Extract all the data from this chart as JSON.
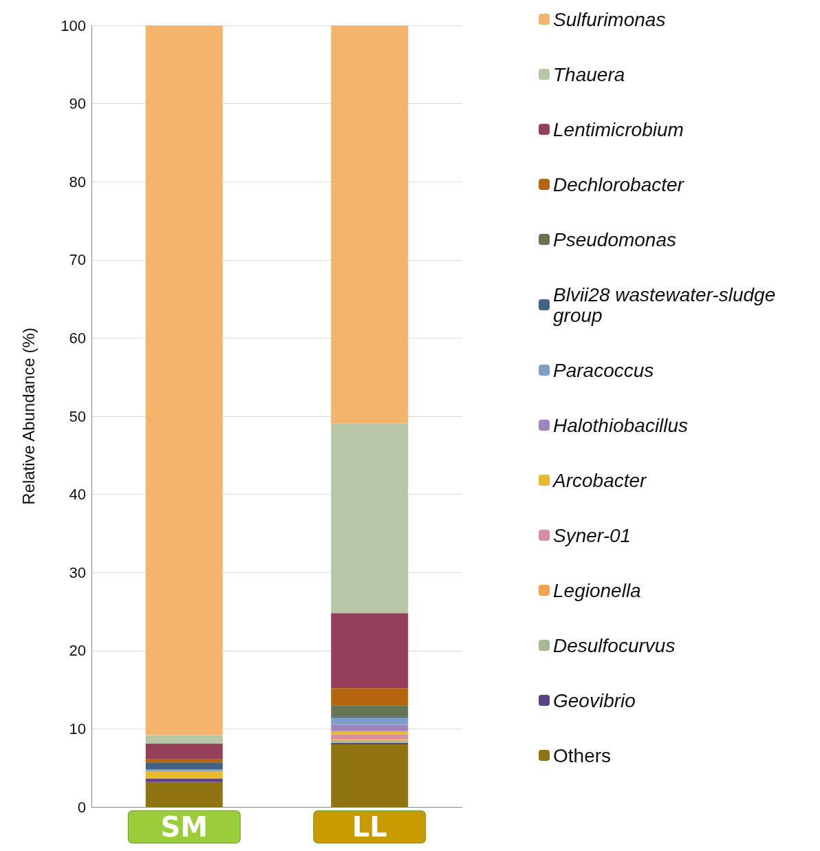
{
  "chart_data": {
    "type": "bar",
    "stacked": true,
    "ylabel": "Relative Abundance (%)",
    "categories": [
      "SM",
      "LL"
    ],
    "ylim": [
      0,
      100
    ],
    "yticks": [
      0,
      10,
      20,
      30,
      40,
      50,
      60,
      70,
      80,
      90,
      100
    ],
    "grid": "y",
    "legend": "right",
    "series": [
      {
        "name": "Others",
        "color": "#8f7411",
        "values": [
          3.2,
          8.0
        ]
      },
      {
        "name": "Geovibrio",
        "color": "#5c4383",
        "values": [
          0.4,
          0.2
        ]
      },
      {
        "name": "Desulfocurvus",
        "color": "#a8b890",
        "values": [
          0,
          0.3
        ]
      },
      {
        "name": "Legionella",
        "color": "#f5a34a",
        "values": [
          0,
          0.2
        ]
      },
      {
        "name": "Syner-01",
        "color": "#d58fa0",
        "values": [
          0,
          0.6
        ]
      },
      {
        "name": "Arcobacter",
        "color": "#e6ba2a",
        "values": [
          1.0,
          0.4
        ]
      },
      {
        "name": "Halothiobacillus",
        "color": "#a084c0",
        "values": [
          0,
          0.8
        ]
      },
      {
        "name": "Paracoccus",
        "color": "#7f9fc6",
        "values": [
          0.2,
          0.9
        ]
      },
      {
        "name": "Blvii28 wastewater-sludge group",
        "color": "#426384",
        "values": [
          0.9,
          0.2
        ]
      },
      {
        "name": "Pseudomonas",
        "color": "#657552",
        "values": [
          0,
          1.4
        ]
      },
      {
        "name": "Dechlorobacter",
        "color": "#b5650f",
        "values": [
          0.4,
          2.2
        ]
      },
      {
        "name": "Lentimicrobium",
        "color": "#953f5a",
        "values": [
          2.0,
          9.6
        ]
      },
      {
        "name": "Thauera",
        "color": "#b8c6a8",
        "values": [
          1.1,
          24.3
        ]
      },
      {
        "name": "Sulfurimonas",
        "color": "#f4b46c",
        "values": [
          90.8,
          50.9
        ]
      }
    ]
  }
}
